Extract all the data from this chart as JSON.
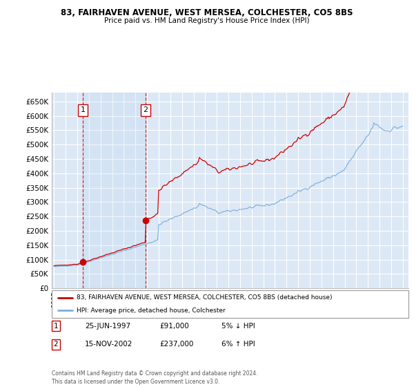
{
  "title_line1": "83, FAIRHAVEN AVENUE, WEST MERSEA, COLCHESTER, CO5 8BS",
  "title_line2": "Price paid vs. HM Land Registry's House Price Index (HPI)",
  "ylim": [
    0,
    680000
  ],
  "yticks": [
    0,
    50000,
    100000,
    150000,
    200000,
    250000,
    300000,
    350000,
    400000,
    450000,
    500000,
    550000,
    600000,
    650000
  ],
  "ytick_labels": [
    "£0",
    "£50K",
    "£100K",
    "£150K",
    "£200K",
    "£250K",
    "£300K",
    "£350K",
    "£400K",
    "£450K",
    "£500K",
    "£550K",
    "£600K",
    "£650K"
  ],
  "background_color": "#ffffff",
  "plot_bg_color": "#dce8f5",
  "grid_color": "#ffffff",
  "sale1_date": 1997.49,
  "sale1_price": 91000,
  "sale2_date": 2002.88,
  "sale2_price": 237000,
  "line_color_red": "#cc0000",
  "line_color_blue": "#7aade0",
  "legend_label_red": "83, FAIRHAVEN AVENUE, WEST MERSEA, COLCHESTER, CO5 8BS (detached house)",
  "legend_label_blue": "HPI: Average price, detached house, Colchester",
  "annotation1_date": "25-JUN-1997",
  "annotation1_price": "£91,000",
  "annotation1_hpi": "5% ↓ HPI",
  "annotation2_date": "15-NOV-2002",
  "annotation2_price": "£237,000",
  "annotation2_hpi": "6% ↑ HPI",
  "footer_text": "Contains HM Land Registry data © Crown copyright and database right 2024.\nThis data is licensed under the Open Government Licence v3.0.",
  "xmin": 1994.8,
  "xmax": 2025.5
}
